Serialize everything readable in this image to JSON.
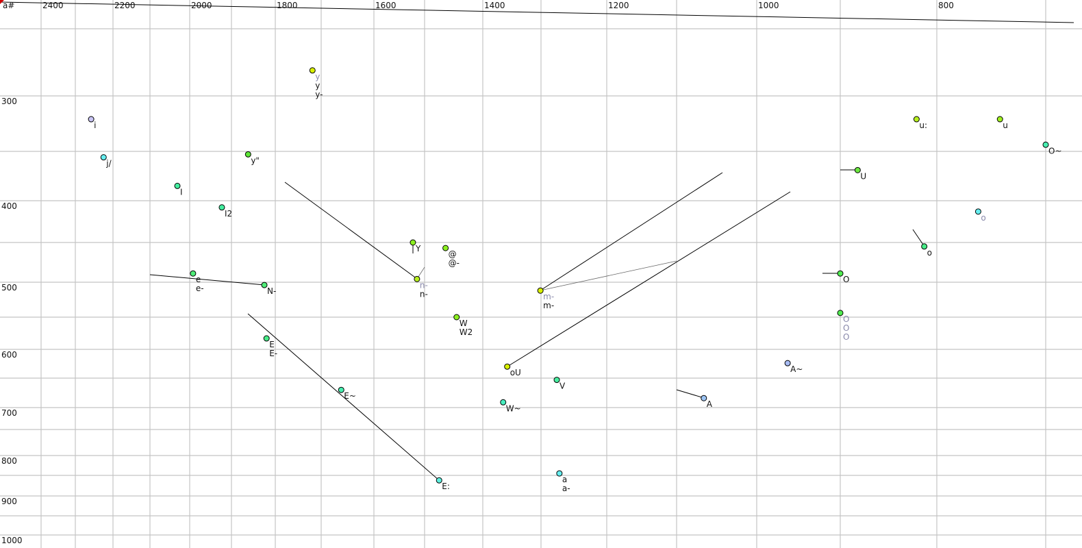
{
  "chart_data": {
    "type": "scatter",
    "corner_label": "a#",
    "x_axis": {
      "reversed": true,
      "position": "top",
      "tick_labels": [
        "2400",
        "2200",
        "2000",
        "1800",
        "1600",
        "1400",
        "1200",
        "1000",
        "800"
      ],
      "minor_gridlines_every": 100
    },
    "y_axis": {
      "position": "left",
      "tick_labels": [
        "300",
        "400",
        "500",
        "600",
        "700",
        "800",
        "900",
        "1000"
      ],
      "minor_gridlines_every": 50
    },
    "grid": true,
    "points": [
      {
        "f2": 1719,
        "f1": 281,
        "color": "#d8f000",
        "labels": [
          {
            "text": "y",
            "grey": true
          },
          {
            "text": "y",
            "grey": false
          },
          {
            "text": "y-",
            "grey": false
          }
        ]
      },
      {
        "f2": 2258,
        "f1": 321,
        "color": "#c8c4f4",
        "labels": [
          {
            "text": "i",
            "grey": false
          }
        ]
      },
      {
        "f2": 2225,
        "f1": 356,
        "color": "#66eef0",
        "labels": [
          {
            "text": "j/",
            "grey": false
          }
        ]
      },
      {
        "f2": 1862,
        "f1": 353,
        "color": "#5ee838",
        "labels": [
          {
            "text": "y\"",
            "grey": false
          }
        ]
      },
      {
        "f2": 2031,
        "f1": 385,
        "color": "#44eea0",
        "labels": [
          {
            "text": "I",
            "grey": false
          }
        ]
      },
      {
        "f2": 1923,
        "f1": 408,
        "color": "#44eea0",
        "labels": [
          {
            "text": "I2",
            "grey": false
          }
        ]
      },
      {
        "f2": 1992,
        "f1": 489,
        "color": "#50ec78",
        "labels": [
          {
            "text": "e",
            "grey": false
          },
          {
            "text": "e-",
            "grey": false
          }
        ]
      },
      {
        "f2": 1825,
        "f1": 504,
        "color": "#50ec78",
        "labels": [
          {
            "text": "N-",
            "grey": false
          }
        ]
      },
      {
        "f2": 1820,
        "f1": 583,
        "color": "#48ec88",
        "labels": [
          {
            "text": "E",
            "grey": false
          },
          {
            "text": "E-",
            "grey": false
          }
        ]
      },
      {
        "f2": 1662,
        "f1": 670,
        "color": "#48eeb0",
        "labels": [
          {
            "text": "E~",
            "grey": false
          }
        ]
      },
      {
        "f2": 1475,
        "f1": 862,
        "color": "#5ef0e0",
        "labels": [
          {
            "text": "E:",
            "grey": false
          }
        ]
      },
      {
        "f2": 1523,
        "f1": 450,
        "color": "#8cf020",
        "labels": [
          {
            "text": "Y",
            "grey": false
          }
        ]
      },
      {
        "f2": 1464,
        "f1": 457,
        "color": "#8cf020",
        "labels": [
          {
            "text": "@",
            "grey": false
          },
          {
            "text": "@-",
            "grey": false
          }
        ]
      },
      {
        "f2": 1515,
        "f1": 496,
        "color": "#b8f020",
        "labels": [
          {
            "text": "n-",
            "grey": true
          },
          {
            "text": "n-",
            "grey": false
          }
        ]
      },
      {
        "f2": 1445,
        "f1": 550,
        "color": "#8cf020",
        "labels": [
          {
            "text": "W",
            "grey": false
          },
          {
            "text": "W2",
            "grey": false
          }
        ]
      },
      {
        "f2": 1301,
        "f1": 512,
        "color": "#d8f000",
        "labels": [
          {
            "text": "m-",
            "grey": true
          },
          {
            "text": "m-",
            "grey": false
          }
        ]
      },
      {
        "f2": 1358,
        "f1": 630,
        "color": "#d8f000",
        "labels": [
          {
            "text": "oU",
            "grey": false
          }
        ]
      },
      {
        "f2": 1276,
        "f1": 653,
        "color": "#48eea0",
        "labels": [
          {
            "text": "V",
            "grey": false
          }
        ]
      },
      {
        "f2": 1365,
        "f1": 691,
        "color": "#48eec0",
        "labels": [
          {
            "text": "W~",
            "grey": false
          }
        ]
      },
      {
        "f2": 1272,
        "f1": 845,
        "color": "#66eef0",
        "labels": [
          {
            "text": "a",
            "grey": false
          },
          {
            "text": "a-",
            "grey": false
          }
        ]
      },
      {
        "f2": 1066,
        "f1": 684,
        "color": "#9cc4f4",
        "labels": [
          {
            "text": "A",
            "grey": false
          }
        ]
      },
      {
        "f2": 963,
        "f1": 624,
        "color": "#a8bcf4",
        "labels": [
          {
            "text": "A~",
            "grey": false
          }
        ]
      },
      {
        "f2": 882,
        "f1": 369,
        "color": "#6ce840",
        "labels": [
          {
            "text": "U",
            "grey": false
          }
        ]
      },
      {
        "f2": 900,
        "f1": 489,
        "color": "#50ec50",
        "labels": [
          {
            "text": "O",
            "grey": false
          }
        ]
      },
      {
        "f2": 900,
        "f1": 544,
        "color": "#50ec50",
        "labels": [
          {
            "text": "O",
            "grey": true
          },
          {
            "text": "O",
            "grey": true
          },
          {
            "text": "O",
            "grey": true
          }
        ]
      },
      {
        "f2": 821,
        "f1": 321,
        "color": "#b8f020",
        "labels": [
          {
            "text": "u:",
            "grey": false
          }
        ]
      },
      {
        "f2": 742,
        "f1": 321,
        "color": "#a0f020",
        "labels": [
          {
            "text": "u",
            "grey": false
          }
        ]
      },
      {
        "f2": 700,
        "f1": 344,
        "color": "#48eeb0",
        "labels": [
          {
            "text": "O~",
            "grey": false
          }
        ]
      },
      {
        "f2": 762,
        "f1": 413,
        "color": "#66eef0",
        "labels": [
          {
            "text": "o",
            "grey": true
          }
        ]
      },
      {
        "f2": 813,
        "f1": 455,
        "color": "#48ec88",
        "labels": [
          {
            "text": "o",
            "grey": false
          }
        ]
      }
    ]
  }
}
